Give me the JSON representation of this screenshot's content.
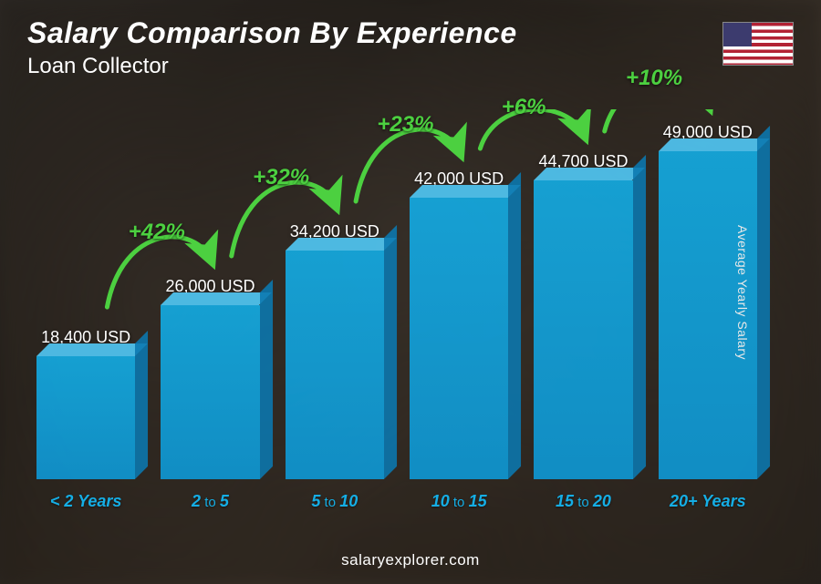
{
  "title": "Salary Comparison By Experience",
  "subtitle": "Loan Collector",
  "y_axis_label": "Average Yearly Salary",
  "footer": "salaryexplorer.com",
  "flag": "us",
  "chart": {
    "type": "bar",
    "bar_color_front": "#14a9e0",
    "bar_color_top": "#50c8f5",
    "bar_color_side": "#0a78af",
    "bar_opacity": 0.9,
    "label_color": "#15aee5",
    "value_color": "#ffffff",
    "arrow_color": "#4cd040",
    "pct_color": "#4cd040",
    "title_fontsize": 32,
    "subtitle_fontsize": 24,
    "value_fontsize": 18,
    "label_fontsize": 18,
    "pct_fontsize": 24,
    "max_value": 49000,
    "background": "photo-dark-office",
    "bars": [
      {
        "label_pre": "< ",
        "label_a": "2",
        "label_to": "",
        "label_b": "",
        "label_post": " Years",
        "value": 18400,
        "value_label": "18,400 USD"
      },
      {
        "label_pre": "",
        "label_a": "2",
        "label_to": " to ",
        "label_b": "5",
        "label_post": "",
        "value": 26000,
        "value_label": "26,000 USD"
      },
      {
        "label_pre": "",
        "label_a": "5",
        "label_to": " to ",
        "label_b": "10",
        "label_post": "",
        "value": 34200,
        "value_label": "34,200 USD"
      },
      {
        "label_pre": "",
        "label_a": "10",
        "label_to": " to ",
        "label_b": "15",
        "label_post": "",
        "value": 42000,
        "value_label": "42,000 USD"
      },
      {
        "label_pre": "",
        "label_a": "15",
        "label_to": " to ",
        "label_b": "20",
        "label_post": "",
        "value": 44700,
        "value_label": "44,700 USD"
      },
      {
        "label_pre": "",
        "label_a": "20+",
        "label_to": "",
        "label_b": "",
        "label_post": " Years",
        "value": 49000,
        "value_label": "49,000 USD"
      }
    ],
    "increases": [
      {
        "pct": "+42%"
      },
      {
        "pct": "+32%"
      },
      {
        "pct": "+23%"
      },
      {
        "pct": "+6%"
      },
      {
        "pct": "+10%"
      }
    ]
  }
}
